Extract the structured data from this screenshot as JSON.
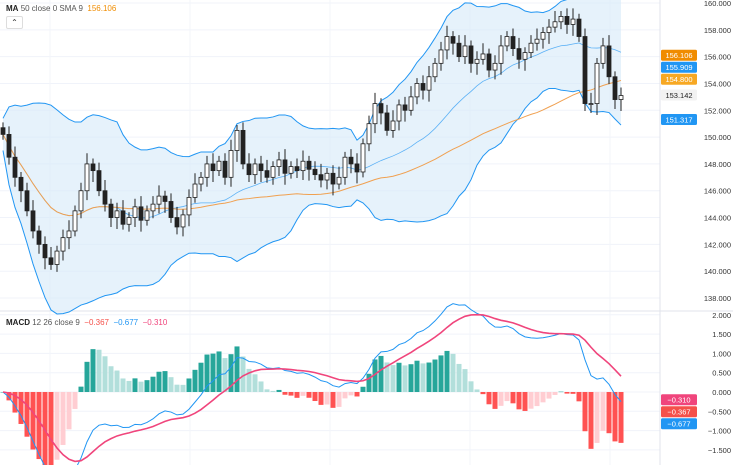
{
  "legend_price": {
    "name": "MA",
    "params": "50 close 0 SMA 9",
    "value": "156.106",
    "value_color": "#f08c00"
  },
  "legend_macd": {
    "name": "MACD",
    "params": "12 26 close 9",
    "hist": "−0.367",
    "macd": "−0.677",
    "signal": "−0.310"
  },
  "collapse_icon": "chevron-up-icon",
  "chart_data": {
    "type": "candlestick",
    "price_axis": {
      "ticks": [
        "160.000",
        "158.000",
        "156.000",
        "154.000",
        "152.000",
        "150.000",
        "148.000",
        "146.000",
        "144.000",
        "142.000",
        "140.000",
        "138.000"
      ],
      "range": [
        138,
        160
      ]
    },
    "macd_axis": {
      "ticks": [
        "2.000",
        "1.500",
        "1.000",
        "0.500",
        "0.000",
        "−0.500",
        "−1.000",
        "−1.500"
      ],
      "range": [
        -1.5,
        2.0
      ]
    },
    "closes": [
      150.2,
      148.5,
      147,
      146,
      144.5,
      143,
      142,
      141,
      140.5,
      141.5,
      142.5,
      143,
      144.5,
      146,
      148,
      147.5,
      146,
      145,
      144,
      144.5,
      143.5,
      144,
      144.8,
      143.8,
      144.5,
      145,
      145.6,
      145.2,
      144,
      143.3,
      144.2,
      145.5,
      146.5,
      147,
      148,
      147.5,
      148.2,
      147,
      149,
      150.5,
      148,
      147.2,
      148,
      147.5,
      147,
      147.8,
      148.3,
      147.3,
      147.8,
      147.5,
      148.2,
      147.6,
      147.2,
      146.8,
      147.3,
      146.5,
      147,
      148.5,
      148,
      147.4,
      149.5,
      151,
      152.5,
      151.8,
      150.5,
      151.2,
      152.4,
      152,
      153,
      154,
      153.5,
      154.5,
      155.5,
      156.5,
      157.5,
      157,
      156,
      156.8,
      155.5,
      155.8,
      156.2,
      155,
      155.5,
      156.8,
      157.5,
      156.6,
      155.8,
      156.3,
      157,
      157.3,
      157.8,
      158.2,
      158.6,
      159,
      158.4,
      158.8,
      157.5,
      152.5,
      152.5,
      155.5,
      156.8,
      154.5,
      152.8,
      153.1
    ],
    "price_tags": [
      {
        "label": "156.106",
        "value": 156.106,
        "color": "#f08c00"
      },
      {
        "label": "155.909",
        "value": 155.909,
        "color": "#2196f3"
      },
      {
        "label": "154.800",
        "value": 154.8,
        "color": "#f7a823"
      },
      {
        "label": "153.142",
        "value": 153.142,
        "color": "#f2f2f2"
      },
      {
        "label": "151.317",
        "value": 151.317,
        "color": "#2196f3"
      }
    ],
    "macd_tags": [
      {
        "label": "−0.310",
        "value": -0.2,
        "color": "#f0457c"
      },
      {
        "label": "−0.367",
        "value": -0.37,
        "color": "#f5504a"
      },
      {
        "label": "−0.677",
        "value": -0.677,
        "color": "#2196f3"
      }
    ],
    "colors": {
      "up": "#ffffff",
      "down": "#222222",
      "bands": "#2196f3",
      "band_fill": "#d6eaf8",
      "ma": "#f0a050",
      "macd": "#2196f3",
      "signal": "#f0457c",
      "hist_up_strong": "#26a69a",
      "hist_up_weak": "#b2dfdb",
      "hist_down_strong": "#ff5252",
      "hist_down_weak": "#ffcdd2"
    }
  }
}
